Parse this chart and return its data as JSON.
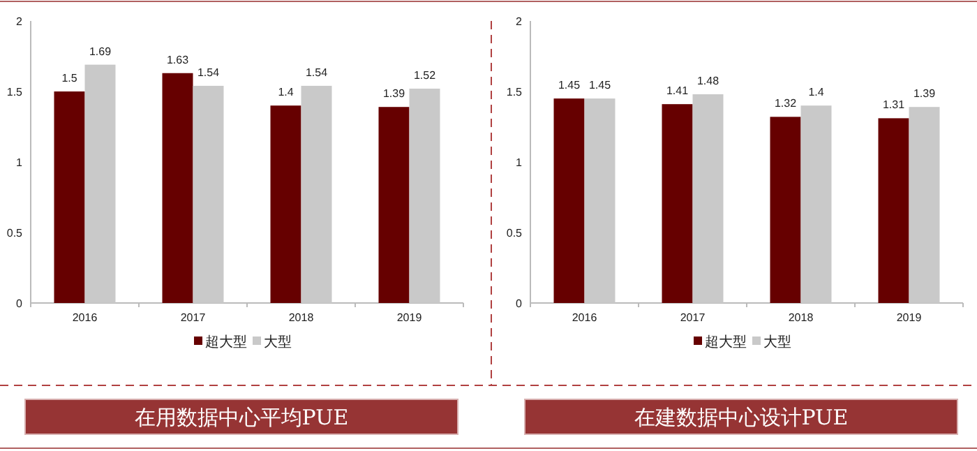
{
  "chart_data": [
    {
      "type": "bar",
      "title": "在用数据中心平均PUE",
      "categories": [
        "2016",
        "2017",
        "2018",
        "2019"
      ],
      "series": [
        {
          "name": "超大型",
          "color": "#660000",
          "values": [
            1.5,
            1.63,
            1.4,
            1.39
          ]
        },
        {
          "name": "大型",
          "color": "#c9c9c9",
          "values": [
            1.69,
            1.54,
            1.54,
            1.52
          ]
        }
      ],
      "ylim": [
        0,
        2
      ],
      "yticks": [
        0,
        0.5,
        1,
        1.5,
        2
      ],
      "data_labels": true,
      "legend": "bottom",
      "grid": false
    },
    {
      "type": "bar",
      "title": "在建数据中心设计PUE",
      "categories": [
        "2016",
        "2017",
        "2018",
        "2019"
      ],
      "series": [
        {
          "name": "超大型",
          "color": "#660000",
          "values": [
            1.45,
            1.41,
            1.32,
            1.31
          ]
        },
        {
          "name": "大型",
          "color": "#c9c9c9",
          "values": [
            1.45,
            1.48,
            1.4,
            1.39
          ]
        }
      ],
      "ylim": [
        0,
        2
      ],
      "yticks": [
        0,
        0.5,
        1,
        1.5,
        2
      ],
      "data_labels": true,
      "legend": "bottom",
      "grid": false
    }
  ]
}
